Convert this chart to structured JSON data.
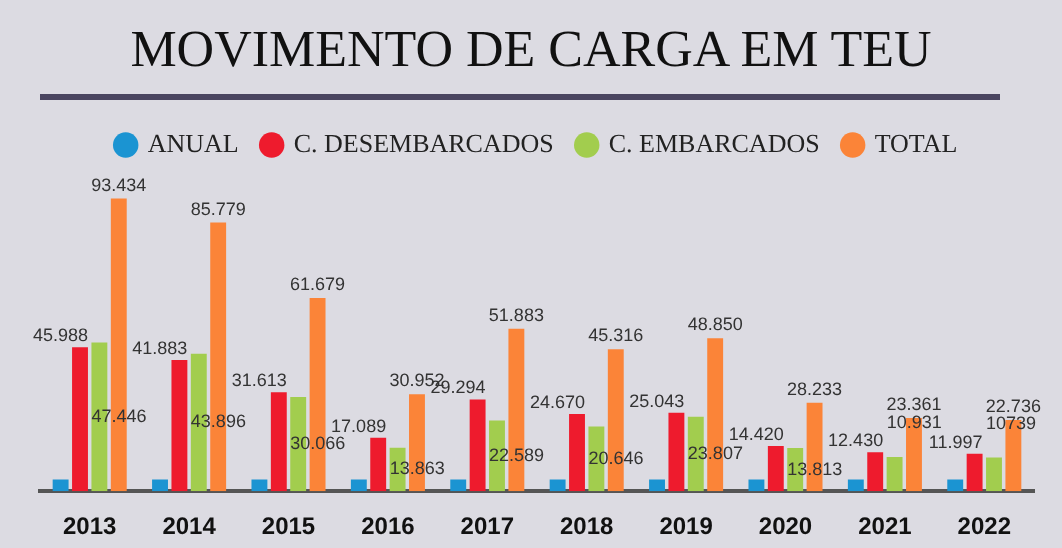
{
  "chart_data": {
    "type": "bar",
    "title": "MOVIMENTO DE CARGA EM TEU",
    "categories": [
      "2013",
      "2014",
      "2015",
      "2016",
      "2017",
      "2018",
      "2019",
      "2020",
      "2021",
      "2022"
    ],
    "legend": "top",
    "series": [
      {
        "name": "ANUAL",
        "color": "#1b94d2",
        "values": [
          3700,
          3700,
          3700,
          3700,
          3700,
          3700,
          3700,
          3700,
          3700,
          3700
        ]
      },
      {
        "name": "C. DESEMBARCADOS",
        "color": "#ee1b2d",
        "values": [
          45988,
          41883,
          31613,
          17089,
          29294,
          24670,
          25043,
          14420,
          12430,
          11997
        ],
        "value_labels": [
          "45.988",
          "41.883",
          "31.613",
          "17.089",
          "29.294",
          "24.670",
          "25.043",
          "14.420",
          "12.430",
          "11.997"
        ]
      },
      {
        "name": "C. EMBARCADOS",
        "color": "#a2cd4e",
        "values": [
          47446,
          43896,
          30066,
          13863,
          22589,
          20646,
          23807,
          13813,
          10931,
          10739
        ],
        "value_labels": [
          "47.446",
          "43.896",
          "30.066",
          "13.863",
          "22.589",
          "20.646",
          "23.807",
          "13.813",
          "10.931",
          "10739"
        ]
      },
      {
        "name": "TOTAL",
        "color": "#fb8438",
        "values": [
          93434,
          85779,
          61679,
          30952,
          51883,
          45316,
          48850,
          28233,
          23361,
          22736
        ],
        "value_labels": [
          "93.434",
          "85.779",
          "61.679",
          "30.952",
          "51.883",
          "45.316",
          "48.850",
          "28.233",
          "23.361",
          "22.736"
        ]
      }
    ]
  }
}
